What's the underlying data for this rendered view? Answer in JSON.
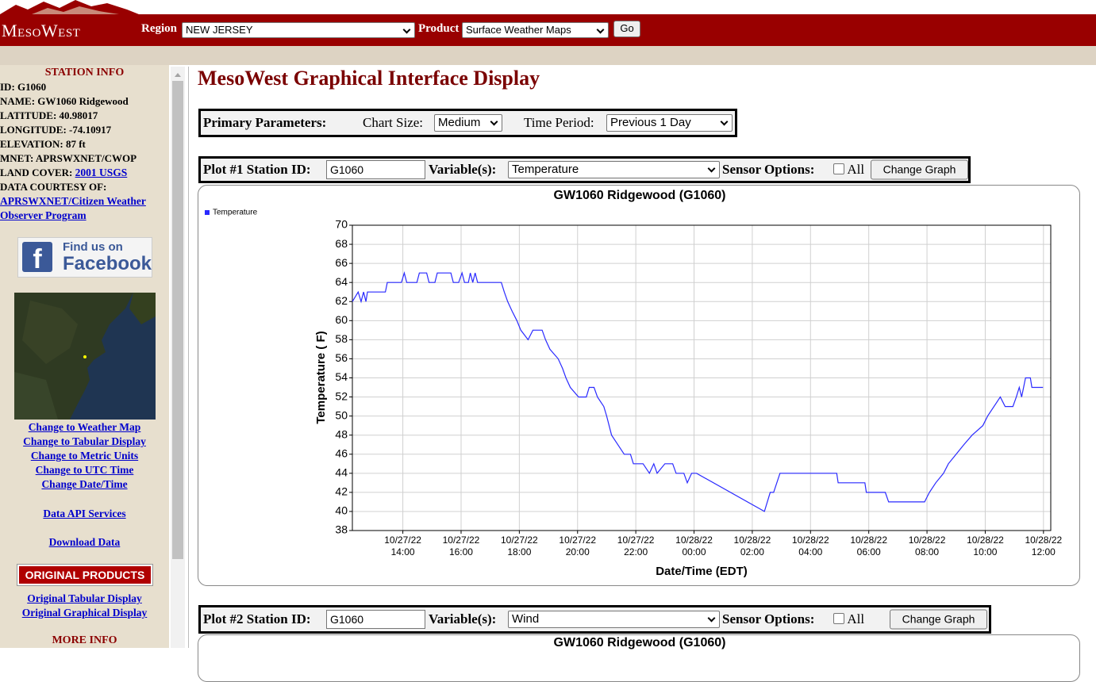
{
  "header": {
    "logo": "MesoWest",
    "region_label": "Region",
    "region_value": "NEW JERSEY",
    "product_label": "Product",
    "product_value": "Surface Weather Maps",
    "go": "Go"
  },
  "sidebar": {
    "heading": "STATION INFO",
    "fields": [
      {
        "label": "ID:",
        "value": "G1060"
      },
      {
        "label": "NAME:",
        "value": "GW1060 Ridgewood"
      },
      {
        "label": "LATITUDE:",
        "value": "40.98017"
      },
      {
        "label": "LONGITUDE:",
        "value": "-74.10917"
      },
      {
        "label": "ELEVATION:",
        "value": "87 ft"
      },
      {
        "label": "MNET:",
        "value": "APRSWXNET/CWOP"
      }
    ],
    "land_cover": {
      "label": "LAND COVER:",
      "link": "2001 USGS"
    },
    "courtesy": {
      "label": "DATA COURTESY OF:",
      "link": "APRSWXNET/Citizen Weather Observer Program"
    },
    "facebook": {
      "line1": "Find us on",
      "line2": "Facebook"
    },
    "links": [
      "Change to Weather Map",
      "Change to Tabular Display",
      "Change to Metric Units",
      "Change to UTC Time",
      "Change Date/Time"
    ],
    "api": "Data API Services",
    "download": "Download Data",
    "original_heading": "ORIGINAL PRODUCTS",
    "original_links": [
      "Original Tabular Display",
      "Original Graphical Display"
    ],
    "more_info": "MORE INFO"
  },
  "main": {
    "title": "MesoWest Graphical Interface Display",
    "primary": {
      "label": "Primary Parameters:",
      "size_label": "Chart Size:",
      "size_value": "Medium",
      "period_label": "Time Period:",
      "period_value": "Previous 1 Day"
    },
    "plot1": {
      "station_label": "Plot #1 Station ID:",
      "station_value": "G1060",
      "variable_label": "Variable(s):",
      "variable_value": "Temperature",
      "sensor_label": "Sensor Options:",
      "all_label": "All",
      "button": "Change Graph"
    },
    "plot2": {
      "station_label": "Plot #2 Station ID:",
      "station_value": "G1060",
      "variable_label": "Variable(s):",
      "variable_value": "Wind",
      "sensor_label": "Sensor Options:",
      "all_label": "All",
      "button": "Change Graph",
      "chart_title": "GW1060 Ridgewood (G1060)"
    }
  },
  "chart_data": {
    "type": "line",
    "title": "GW1060 Ridgewood (G1060)",
    "y_label": "Temperature ( F)",
    "x_label": "Date/Time (EDT)",
    "grid": true,
    "legend": "top-left",
    "x": [
      "10/27/22 12:16",
      "10/27/22 12:28",
      "10/27/22 12:34",
      "10/27/22 12:39",
      "10/27/22 12:44",
      "10/27/22 12:47",
      "10/27/22 13:24",
      "10/27/22 13:28",
      "10/27/22 13:57",
      "10/27/22 14:03",
      "10/27/22 14:08",
      "10/27/22 14:29",
      "10/27/22 14:34",
      "10/27/22 14:49",
      "10/27/22 14:54",
      "10/27/22 15:06",
      "10/27/22 15:11",
      "10/27/22 15:39",
      "10/27/22 15:44",
      "10/27/22 15:55",
      "10/27/22 16:02",
      "10/27/22 16:07",
      "10/27/22 16:15",
      "10/27/22 16:19",
      "10/27/22 16:24",
      "10/27/22 16:29",
      "10/27/22 16:34",
      "10/27/22 17:23",
      "10/27/22 17:29",
      "10/27/22 17:36",
      "10/27/22 17:45",
      "10/27/22 17:55",
      "10/27/22 18:03",
      "10/27/22 18:18",
      "10/27/22 18:28",
      "10/27/22 18:47",
      "10/27/22 18:54",
      "10/27/22 19:03",
      "10/27/22 19:20",
      "10/27/22 19:29",
      "10/27/22 19:36",
      "10/27/22 19:45",
      "10/27/22 20:02",
      "10/27/22 20:18",
      "10/27/22 20:24",
      "10/27/22 20:34",
      "10/27/22 20:41",
      "10/27/22 20:54",
      "10/27/22 21:00",
      "10/27/22 21:10",
      "10/27/22 21:23",
      "10/27/22 21:36",
      "10/27/22 21:49",
      "10/27/22 21:55",
      "10/27/22 22:15",
      "10/27/22 22:28",
      "10/27/22 22:37",
      "10/27/22 22:44",
      "10/27/22 23:00",
      "10/27/22 23:16",
      "10/27/22 23:23",
      "10/27/22 23:39",
      "10/27/22 23:46",
      "10/27/22 23:55",
      "10/28/22 00:05",
      "10/28/22 02:25",
      "10/28/22 02:37",
      "10/28/22 02:44",
      "10/28/22 02:57",
      "10/28/22 04:54",
      "10/28/22 04:57",
      "10/28/22 05:52",
      "10/28/22 05:55",
      "10/28/22 06:34",
      "10/28/22 06:41",
      "10/28/22 07:55",
      "10/28/22 08:05",
      "10/28/22 08:18",
      "10/28/22 08:34",
      "10/28/22 08:44",
      "10/28/22 09:00",
      "10/28/22 09:16",
      "10/28/22 09:33",
      "10/28/22 09:55",
      "10/28/22 10:05",
      "10/28/22 10:31",
      "10/28/22 10:41",
      "10/28/22 10:57",
      "10/28/22 11:04",
      "10/28/22 11:10",
      "10/28/22 11:15",
      "10/28/22 11:23",
      "10/28/22 11:33",
      "10/28/22 11:36",
      "10/28/22 11:59"
    ],
    "series": [
      {
        "name": "Temperature",
        "color": "#2a2aff",
        "values": [
          62,
          63,
          62,
          63,
          62,
          63,
          63,
          64,
          64,
          65,
          64,
          64,
          65,
          65,
          64,
          64,
          65,
          65,
          64,
          64,
          65,
          64,
          64,
          65,
          64,
          65,
          64,
          64,
          63,
          62,
          61,
          60,
          59,
          58,
          59,
          59,
          58,
          57,
          56,
          55,
          54,
          53,
          52,
          52,
          53,
          53,
          52,
          51,
          50,
          48,
          47,
          46,
          46,
          45,
          45,
          44,
          45,
          44,
          45,
          45,
          44,
          44,
          43,
          44,
          44,
          40,
          42,
          42,
          44,
          44,
          43,
          43,
          42,
          42,
          41,
          41,
          42,
          43,
          44,
          45,
          46,
          47,
          48,
          49,
          50,
          52,
          51,
          51,
          52,
          53,
          52,
          54,
          54,
          53,
          53
        ]
      }
    ],
    "xlim": [
      "10/27/22 12:16",
      "10/28/22 12:15"
    ],
    "xticks": [
      "10/27/22 14:00",
      "10/27/22 16:00",
      "10/27/22 18:00",
      "10/27/22 20:00",
      "10/27/22 22:00",
      "10/28/22 00:00",
      "10/28/22 02:00",
      "10/28/22 04:00",
      "10/28/22 06:00",
      "10/28/22 08:00",
      "10/28/22 10:00",
      "10/28/22 12:00"
    ],
    "ylim": [
      38,
      70
    ],
    "yticks": [
      38,
      40,
      42,
      44,
      46,
      48,
      50,
      52,
      54,
      56,
      58,
      60,
      62,
      64,
      66,
      68,
      70
    ]
  }
}
